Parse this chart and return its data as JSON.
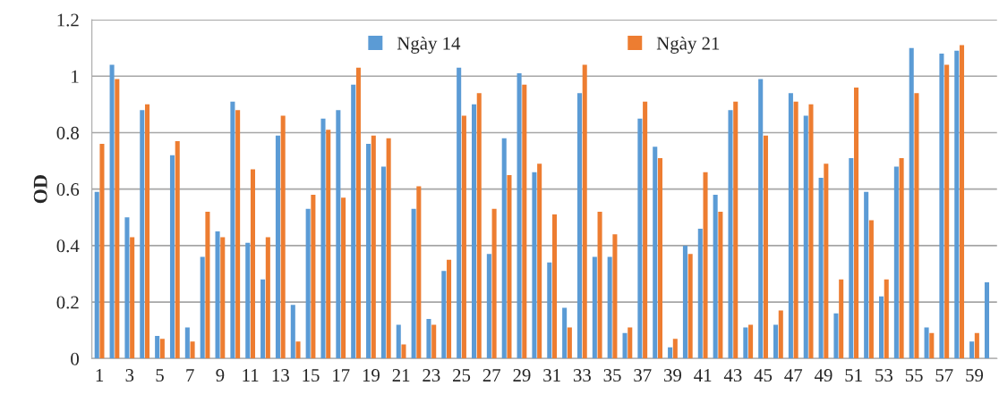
{
  "chart_data": {
    "type": "bar",
    "ylabel": "OD",
    "categories": [
      "1",
      null,
      "3",
      null,
      "5",
      null,
      "7",
      null,
      "9",
      null,
      "11",
      null,
      "13",
      null,
      "15",
      null,
      "17",
      null,
      "19",
      null,
      "21",
      null,
      "23",
      null,
      "25",
      null,
      "27",
      null,
      "29",
      null,
      "31",
      null,
      "33",
      null,
      "35",
      null,
      "37",
      null,
      "39",
      null,
      "41",
      null,
      "43",
      null,
      "45",
      null,
      "47",
      null,
      "49",
      null,
      "51",
      null,
      "53",
      null,
      "55",
      null,
      "57",
      null,
      "59",
      null
    ],
    "series": [
      {
        "name": "Ngày 14",
        "color": "#5b9bd5",
        "values": [
          0.59,
          1.04,
          0.5,
          0.88,
          0.08,
          0.72,
          0.11,
          0.36,
          0.45,
          0.91,
          0.41,
          0.28,
          0.79,
          0.19,
          0.53,
          0.85,
          0.88,
          0.97,
          0.76,
          0.68,
          0.12,
          0.53,
          0.14,
          0.31,
          1.03,
          0.9,
          0.37,
          0.78,
          1.01,
          0.66,
          0.34,
          0.18,
          0.94,
          0.36,
          0.36,
          0.09,
          0.85,
          0.75,
          0.04,
          0.4,
          0.46,
          0.58,
          0.88,
          0.11,
          0.99,
          0.12,
          0.94,
          0.86,
          0.64,
          0.16,
          0.71,
          0.59,
          0.22,
          0.68,
          1.1,
          0.11,
          1.08,
          1.09,
          0.06,
          0.27
        ]
      },
      {
        "name": "Ngày 21",
        "color": "#ed7d31",
        "values": [
          0.76,
          0.99,
          0.43,
          0.9,
          0.07,
          0.77,
          0.06,
          0.52,
          0.43,
          0.88,
          0.67,
          0.43,
          0.86,
          0.06,
          0.58,
          0.81,
          0.57,
          1.03,
          0.79,
          0.78,
          0.05,
          0.61,
          0.12,
          0.35,
          0.86,
          0.94,
          0.53,
          0.65,
          0.97,
          0.69,
          0.51,
          0.11,
          1.04,
          0.52,
          0.44,
          0.11,
          0.91,
          0.71,
          0.07,
          0.37,
          0.66,
          0.52,
          0.91,
          0.12,
          0.79,
          0.17,
          0.91,
          0.9,
          0.69,
          0.28,
          0.96,
          0.49,
          0.28,
          0.71,
          0.94,
          0.09,
          1.04,
          1.11,
          0.09,
          null
        ]
      }
    ],
    "ylim": [
      0,
      1.2
    ],
    "yticks": [
      0,
      0.2,
      0.4,
      0.6,
      0.8,
      1,
      1.2
    ],
    "grid": "y",
    "legend": "top"
  }
}
